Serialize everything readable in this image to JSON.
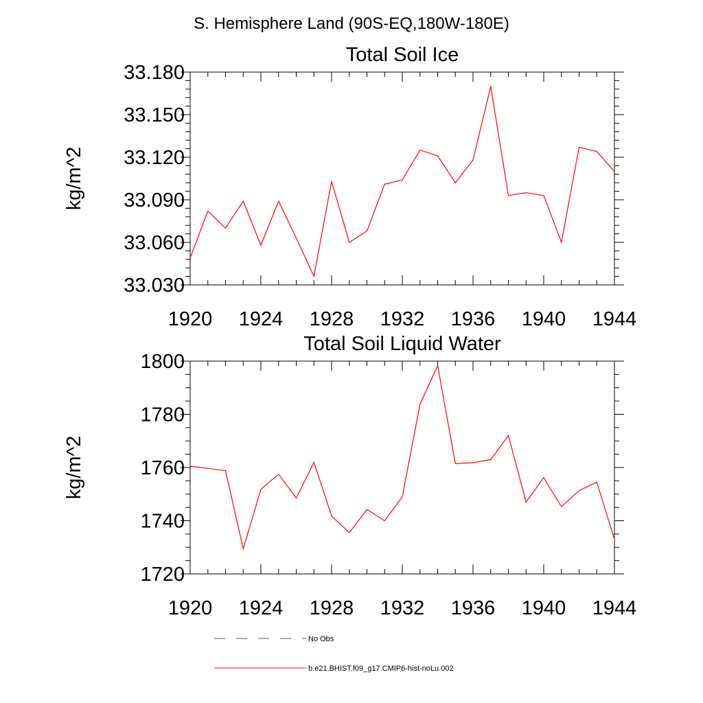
{
  "page_title": "S. Hemisphere Land (90S-EQ,180W-180E)",
  "chart_data": [
    {
      "type": "line",
      "title": "Total Soil Ice",
      "xlabel": "",
      "ylabel": "kg/m^2",
      "xlim": [
        1920,
        1944
      ],
      "ylim": [
        33.03,
        33.18
      ],
      "x_ticks": [
        "1920",
        "1924",
        "1928",
        "1932",
        "1936",
        "1940",
        "1944"
      ],
      "y_ticks": [
        "33.030",
        "33.060",
        "33.090",
        "33.120",
        "33.150",
        "33.180"
      ],
      "grid": false,
      "series": [
        {
          "name": "b.e21.BHIST.f09_g17.CMIP6-hist-noLu.002",
          "color": "#ff0000",
          "x": [
            1920,
            1921,
            1922,
            1923,
            1924,
            1925,
            1926,
            1927,
            1928,
            1929,
            1930,
            1931,
            1932,
            1933,
            1934,
            1935,
            1936,
            1937,
            1938,
            1939,
            1940,
            1941,
            1942,
            1943,
            1944
          ],
          "values": [
            33.049,
            33.082,
            33.07,
            33.089,
            33.058,
            33.089,
            33.063,
            33.036,
            33.103,
            33.06,
            33.068,
            33.101,
            33.104,
            33.125,
            33.121,
            33.102,
            33.118,
            33.17,
            33.093,
            33.095,
            33.093,
            33.06,
            33.127,
            33.124,
            33.11
          ]
        }
      ]
    },
    {
      "type": "line",
      "title": "Total Soil Liquid Water",
      "xlabel": "",
      "ylabel": "kg/m^2",
      "xlim": [
        1920,
        1944
      ],
      "ylim": [
        1720,
        1800
      ],
      "x_ticks": [
        "1920",
        "1924",
        "1928",
        "1932",
        "1936",
        "1940",
        "1944"
      ],
      "y_ticks": [
        "1720",
        "1740",
        "1760",
        "1780",
        "1800"
      ],
      "grid": false,
      "series": [
        {
          "name": "b.e21.BHIST.f09_g17.CMIP6-hist-noLu.002",
          "color": "#ff0000",
          "x": [
            1920,
            1921,
            1922,
            1923,
            1924,
            1925,
            1926,
            1927,
            1928,
            1929,
            1930,
            1931,
            1932,
            1933,
            1934,
            1935,
            1936,
            1937,
            1938,
            1939,
            1940,
            1941,
            1942,
            1943,
            1944
          ],
          "values": [
            1760.5,
            1759.7,
            1758.8,
            1729.5,
            1751.8,
            1757.5,
            1748.5,
            1762.0,
            1741.8,
            1735.5,
            1744.2,
            1740.0,
            1749.0,
            1783.8,
            1798.3,
            1761.5,
            1761.8,
            1763.0,
            1772.0,
            1747.0,
            1756.2,
            1745.3,
            1751.3,
            1754.5,
            1733.0
          ]
        }
      ]
    }
  ],
  "legend": {
    "items": [
      {
        "label": "No Obs",
        "color": "#4a5a78",
        "style": "dashed"
      },
      {
        "label": "b.e21.BHIST.f09_g17.CMIP6-hist-noLu.002",
        "color": "#ff0000",
        "style": "solid"
      }
    ]
  }
}
